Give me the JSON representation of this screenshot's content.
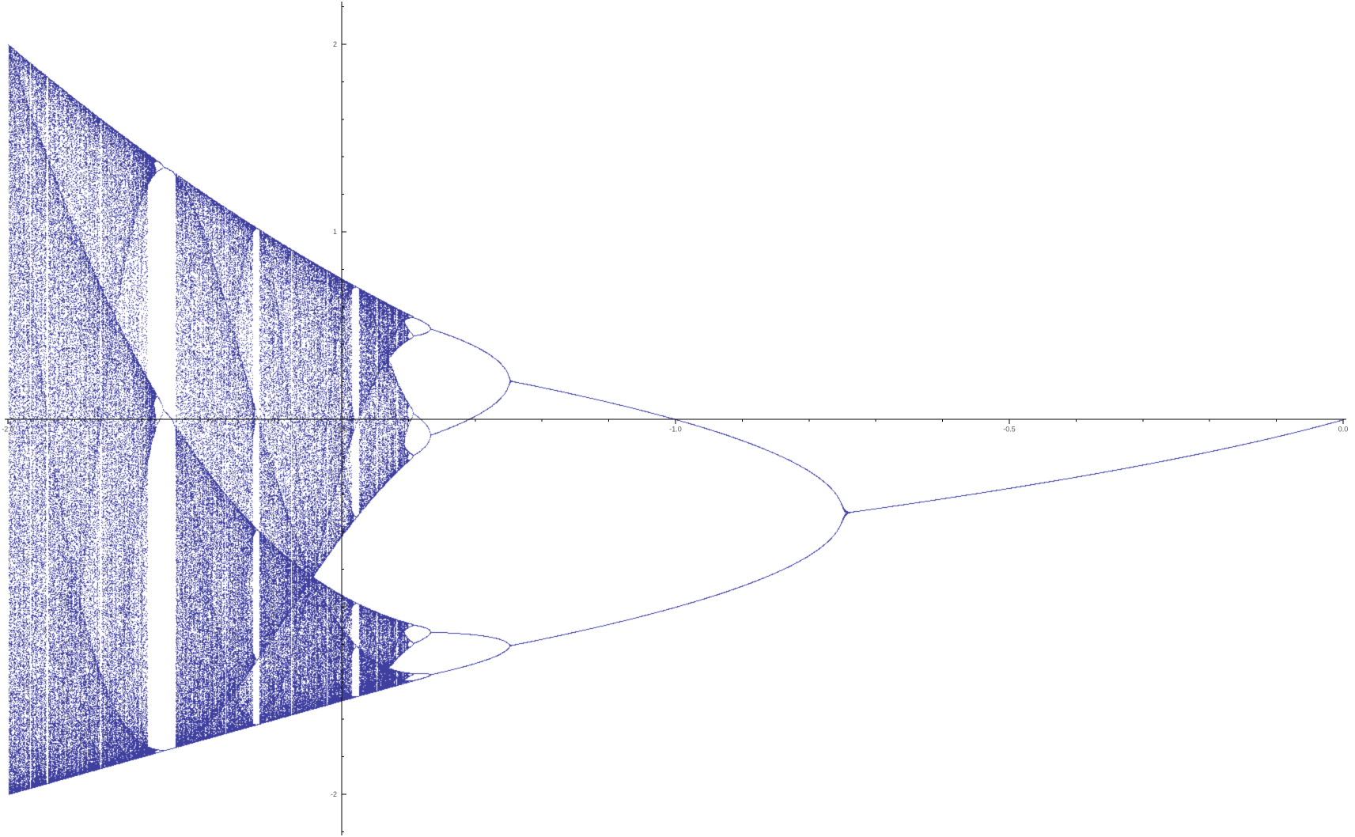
{
  "chart_data": {
    "type": "scatter",
    "title": "",
    "xlabel": "",
    "ylabel": "",
    "xlim": [
      -2.0,
      0.0
    ],
    "ylim": [
      -2.25,
      2.25
    ],
    "x_ticks": [
      -2.0,
      -1.5,
      -1.0,
      -0.5,
      0.0
    ],
    "x_tick_labels": [
      "-2.0",
      "-1.5",
      "-1.0",
      "-0.5",
      "0.0"
    ],
    "x_minor_step": 0.1,
    "y_ticks": [
      -2,
      -1,
      1,
      2
    ],
    "y_tick_labels": [
      "-2",
      "-1",
      "1",
      "2"
    ],
    "y_minor_step": 0.2,
    "y_axis_at_x": -1.5,
    "x_axis_at_y": 0,
    "grid": false,
    "legend": "none",
    "point_color": "#3f3f9f",
    "axis_color": "#000000",
    "series": [
      {
        "description_key": "bifurcation-orbit-points",
        "map": "z_{n+1} = z_n^2 + c",
        "c_range": [
          -2.0,
          0.0
        ],
        "values_sampled": [
          {
            "c": -0.05,
            "orbit": [
              -0.0477
            ]
          },
          {
            "c": -0.25,
            "orbit": [
              -0.5
            ]
          },
          {
            "c": -0.5,
            "orbit": [
              -0.366
            ]
          },
          {
            "c": -0.75,
            "orbit": [
              -0.5
            ]
          },
          {
            "c": -0.9,
            "orbit": [
              -0.887,
              0.113
            ]
          },
          {
            "c": -1.0,
            "orbit": [
              -1.0,
              0.0
            ]
          },
          {
            "c": -1.25,
            "orbit": [
              -1.205,
              0.202,
              -0.41,
              -1.082
            ]
          },
          {
            "c": -1.4,
            "orbit": [
              -1.4,
              0.56,
              -1.086,
              0.0
            ]
          },
          {
            "c": -1.75,
            "orbit": [
              -1.747,
              1.303,
              -0.0
            ]
          },
          {
            "c": -2.0,
            "orbit": [
              -2.0,
              2.0
            ]
          }
        ]
      }
    ]
  }
}
